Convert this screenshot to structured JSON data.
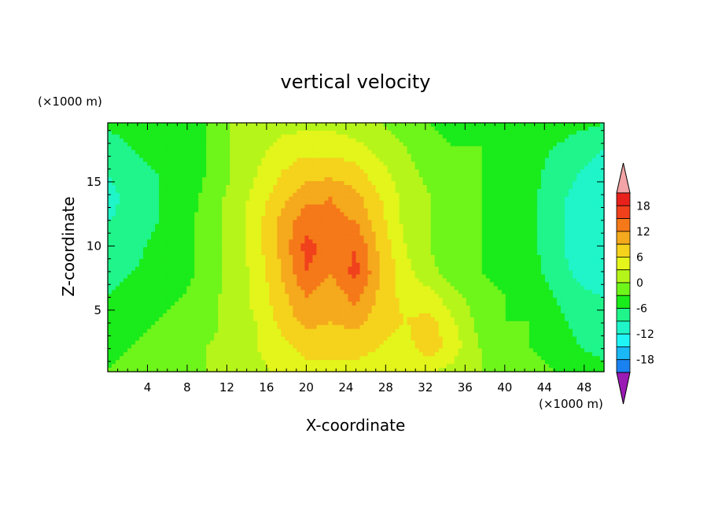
{
  "chart_data": {
    "type": "heatmap",
    "title": "vertical velocity",
    "xlabel": "X-coordinate",
    "ylabel": "Z-coordinate",
    "x_unit": "(×1000 m)",
    "y_unit": "(×1000 m)",
    "xlim": [
      0,
      50
    ],
    "ylim": [
      0.2,
      19.6
    ],
    "x_ticks": [
      4,
      8,
      12,
      16,
      20,
      24,
      28,
      32,
      36,
      40,
      44,
      48
    ],
    "y_ticks": [
      5,
      10,
      15
    ],
    "colorbar": {
      "labels": [
        18,
        12,
        6,
        0,
        -6,
        -12,
        -18
      ],
      "levels": [
        21,
        18,
        15,
        12,
        9,
        6,
        3,
        0,
        -3,
        -6,
        -9,
        -12,
        -15,
        -18,
        -21
      ],
      "colors": [
        "#f2a4a6",
        "#e8211c",
        "#f0411c",
        "#f57918",
        "#f5a91c",
        "#f5d21c",
        "#e3f51a",
        "#b6f51a",
        "#6ef51a",
        "#1aeb1a",
        "#1ff58a",
        "#1ff5c8",
        "#1ff5f5",
        "#1ab8f5",
        "#1a82f0",
        "#1a4ef5",
        "#1a1ae6",
        "#1a1ab4",
        "#2c1a9a",
        "#6a1a9a",
        "#9a1ab4"
      ]
    },
    "grid_values": [
      [
        -5,
        -4,
        -4,
        -4,
        -3,
        0,
        1,
        2,
        2,
        2,
        1,
        0,
        -2,
        -3,
        -4,
        -4,
        -4,
        -4,
        -4,
        -5,
        -6
      ],
      [
        -8,
        -6,
        -5,
        -4,
        -3,
        0,
        2,
        4,
        5,
        5,
        4,
        2,
        0,
        -2,
        -3,
        -3,
        -4,
        -5,
        -6,
        -8,
        -9
      ],
      [
        -9,
        -7,
        -6,
        -5,
        -3,
        0,
        3,
        6,
        8,
        8,
        7,
        4,
        1,
        -1,
        -3,
        -3,
        -4,
        -5,
        -7,
        -9,
        -10
      ],
      [
        -10,
        -8,
        -6,
        -5,
        -2,
        1,
        4,
        8,
        11,
        12,
        10,
        6,
        2,
        0,
        -3,
        -3,
        -4,
        -5,
        -8,
        -10,
        -11
      ],
      [
        -9,
        -8,
        -6,
        -4,
        -2,
        1,
        5,
        10,
        14,
        13,
        12,
        7,
        2,
        0,
        -3,
        -3,
        -4,
        -5,
        -8,
        -11,
        -12
      ],
      [
        -8,
        -7,
        -5,
        -4,
        -2,
        1,
        5,
        10,
        16,
        14,
        15,
        8,
        3,
        0,
        -3,
        -3,
        -4,
        -5,
        -8,
        -11,
        -12
      ],
      [
        -7,
        -6,
        -5,
        -4,
        -2,
        1,
        4,
        9,
        15,
        12,
        16,
        9,
        4,
        1,
        -2,
        -3,
        -4,
        -5,
        -7,
        -10,
        -11
      ],
      [
        -6,
        -5,
        -4,
        -3,
        -1,
        1,
        4,
        8,
        12,
        10,
        13,
        8,
        5,
        4,
        1,
        -2,
        -3,
        -4,
        -6,
        -8,
        -9
      ],
      [
        -5,
        -4,
        -3,
        -2,
        -1,
        1,
        3,
        7,
        10,
        9,
        10,
        7,
        6,
        7,
        3,
        -1,
        -3,
        -3,
        -5,
        -7,
        -8
      ],
      [
        -4,
        -3,
        -2,
        -1,
        0,
        1,
        3,
        5,
        7,
        7,
        7,
        6,
        5,
        8,
        4,
        0,
        -2,
        -3,
        -4,
        -6,
        -7
      ],
      [
        -3,
        -2,
        -1,
        0,
        0,
        1,
        2,
        4,
        5,
        5,
        5,
        4,
        3,
        3,
        2,
        0,
        -1,
        -2,
        -3,
        -4,
        -5
      ]
    ]
  }
}
